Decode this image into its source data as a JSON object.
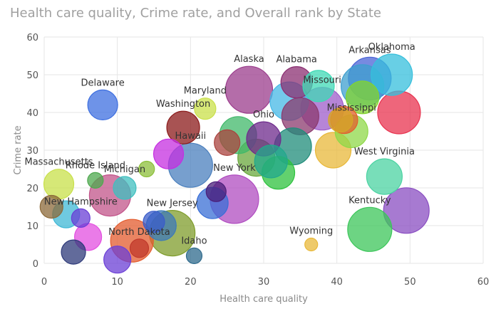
{
  "chart_data": {
    "type": "scatter",
    "title": "Health care quality, Crime rate, and Overall rank by State",
    "xlabel": "Health care quality",
    "ylabel": "Crime rate",
    "xlim": [
      0,
      60
    ],
    "ylim": [
      0,
      60
    ],
    "xticks": [
      0,
      10,
      20,
      30,
      40,
      50,
      60
    ],
    "yticks": [
      0,
      10,
      20,
      30,
      40,
      50,
      60
    ],
    "grid": true,
    "legend": "none",
    "points": [
      {
        "x": 28,
        "y": 46,
        "size": 33,
        "color": "#9b3c8c",
        "label": "Alaska"
      },
      {
        "x": 34.5,
        "y": 48,
        "size": 22,
        "color": "#8b2f72",
        "label": "Alabama"
      },
      {
        "x": 37.5,
        "y": 47,
        "size": 22,
        "color": "#3fd9b5",
        "label": ""
      },
      {
        "x": 33.5,
        "y": 43,
        "size": 27,
        "color": "#45b8e6",
        "label": ""
      },
      {
        "x": 38,
        "y": 41,
        "size": 30,
        "color": "#9e5cc9",
        "label": "Missouri"
      },
      {
        "x": 44.5,
        "y": 49,
        "size": 30,
        "color": "#4a63d6",
        "label": "Arkansas"
      },
      {
        "x": 43.5,
        "y": 47,
        "size": 30,
        "color": "#3e9fcf",
        "label": ""
      },
      {
        "x": 47.5,
        "y": 50,
        "size": 29,
        "color": "#36bfdc",
        "label": "Oklahoma"
      },
      {
        "x": 48.5,
        "y": 40,
        "size": 30,
        "color": "#e8334f",
        "label": ""
      },
      {
        "x": 43.5,
        "y": 44,
        "size": 23,
        "color": "#82d42e",
        "label": ""
      },
      {
        "x": 41,
        "y": 38,
        "size": 19,
        "color": "#e35f2a",
        "label": ""
      },
      {
        "x": 40.5,
        "y": 38,
        "size": 17,
        "color": "#d6a728",
        "label": ""
      },
      {
        "x": 42,
        "y": 35,
        "size": 23,
        "color": "#8fd848",
        "label": "Mississippi"
      },
      {
        "x": 39.5,
        "y": 30,
        "size": 25,
        "color": "#e8b839",
        "label": ""
      },
      {
        "x": 46.5,
        "y": 23,
        "size": 25,
        "color": "#4bd3a2",
        "label": "West Virginia"
      },
      {
        "x": 49.5,
        "y": 14,
        "size": 32,
        "color": "#8a4ec2",
        "label": ""
      },
      {
        "x": 44.5,
        "y": 9,
        "size": 31,
        "color": "#3cc65a",
        "label": "Kentucky"
      },
      {
        "x": 36.5,
        "y": 5,
        "size": 9,
        "color": "#e8b839",
        "label": "Wyoming"
      },
      {
        "x": 35,
        "y": 39,
        "size": 26,
        "color": "#8b3a6e",
        "label": ""
      },
      {
        "x": 34,
        "y": 31,
        "size": 26,
        "color": "#1f8c7a",
        "label": ""
      },
      {
        "x": 32,
        "y": 24,
        "size": 23,
        "color": "#2ec23e",
        "label": ""
      },
      {
        "x": 31,
        "y": 27,
        "size": 23,
        "color": "#22a88c",
        "label": ""
      },
      {
        "x": 29,
        "y": 28,
        "size": 26,
        "color": "#6aa83c",
        "label": ""
      },
      {
        "x": 30,
        "y": 33,
        "size": 24,
        "color": "#6e2a8c",
        "label": "Ohio"
      },
      {
        "x": 26.5,
        "y": 34,
        "size": 26,
        "color": "#40b86a",
        "label": ""
      },
      {
        "x": 25,
        "y": 32,
        "size": 18,
        "color": "#a9433e",
        "label": ""
      },
      {
        "x": 26,
        "y": 17,
        "size": 34,
        "color": "#b04cc0",
        "label": "New York"
      },
      {
        "x": 23,
        "y": 16,
        "size": 22,
        "color": "#3a6fd6",
        "label": ""
      },
      {
        "x": 23.5,
        "y": 19,
        "size": 14,
        "color": "#4a1f7a",
        "label": ""
      },
      {
        "x": 22,
        "y": 41,
        "size": 15,
        "color": "#c9e04a",
        "label": "Maryland"
      },
      {
        "x": 19,
        "y": 36,
        "size": 23,
        "color": "#8b1a1a",
        "label": "Washington"
      },
      {
        "x": 20,
        "y": 26,
        "size": 31,
        "color": "#4a7fbd",
        "label": "Hawaii"
      },
      {
        "x": 17,
        "y": 29,
        "size": 21,
        "color": "#c52fe0",
        "label": ""
      },
      {
        "x": 14,
        "y": 25,
        "size": 11,
        "color": "#8cbf3a",
        "label": ""
      },
      {
        "x": 17.5,
        "y": 8,
        "size": 32,
        "color": "#7f9c2b",
        "label": "New Jersey"
      },
      {
        "x": 16,
        "y": 10,
        "size": 21,
        "color": "#3d7ab8",
        "label": ""
      },
      {
        "x": 15,
        "y": 11,
        "size": 15,
        "color": "#3a5cc9",
        "label": ""
      },
      {
        "x": 12,
        "y": 6,
        "size": 30,
        "color": "#e35b2e",
        "label": ""
      },
      {
        "x": 13,
        "y": 4,
        "size": 13,
        "color": "#c0392b",
        "label": "North Dakota"
      },
      {
        "x": 10,
        "y": 1,
        "size": 19,
        "color": "#6b3fd6",
        "label": ""
      },
      {
        "x": 8,
        "y": 42,
        "size": 21,
        "color": "#3e6fe0",
        "label": "Delaware"
      },
      {
        "x": 9,
        "y": 18,
        "size": 29,
        "color": "#c2548a",
        "label": ""
      },
      {
        "x": 11,
        "y": 20,
        "size": 16,
        "color": "#3fbfbf",
        "label": "Michigan"
      },
      {
        "x": 7,
        "y": 22,
        "size": 11,
        "color": "#4ea84e",
        "label": "Rhode Island"
      },
      {
        "x": 6,
        "y": 7,
        "size": 19,
        "color": "#e34fe0",
        "label": ""
      },
      {
        "x": 5,
        "y": 12,
        "size": 13,
        "color": "#6a3fd6",
        "label": "New Hampshire"
      },
      {
        "x": 3,
        "y": 13,
        "size": 19,
        "color": "#3fb8d6",
        "label": ""
      },
      {
        "x": 2,
        "y": 21,
        "size": 21,
        "color": "#c8e04a",
        "label": "Massachusetts"
      },
      {
        "x": 1,
        "y": 15,
        "size": 16,
        "color": "#8c6a3a",
        "label": ""
      },
      {
        "x": 4,
        "y": 3,
        "size": 17,
        "color": "#2e3a7a",
        "label": ""
      },
      {
        "x": 20.5,
        "y": 2,
        "size": 11,
        "color": "#2e6a8c",
        "label": "Idaho"
      }
    ]
  }
}
